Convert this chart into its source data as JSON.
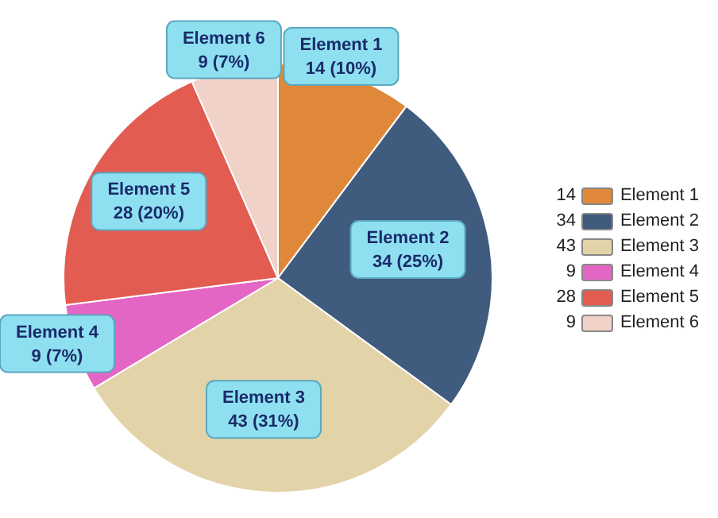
{
  "chart_data": {
    "type": "pie",
    "categories": [
      "Element 1",
      "Element 2",
      "Element 3",
      "Element 4",
      "Element 5",
      "Element 6"
    ],
    "values": [
      14,
      34,
      43,
      9,
      28,
      9
    ],
    "colors": [
      "#e0883a",
      "#3f5b7e",
      "#e3d3a8",
      "#e466c4",
      "#e25c52",
      "#f0d2c8"
    ],
    "value_labels": [
      "14 (10%)",
      "34 (25%)",
      "43 (31%)",
      "9 (7%)",
      "28 (20%)",
      "9 (7%)"
    ],
    "annotations": [
      "14",
      "34",
      "43",
      "9",
      "28",
      "9"
    ],
    "legend": "right"
  }
}
